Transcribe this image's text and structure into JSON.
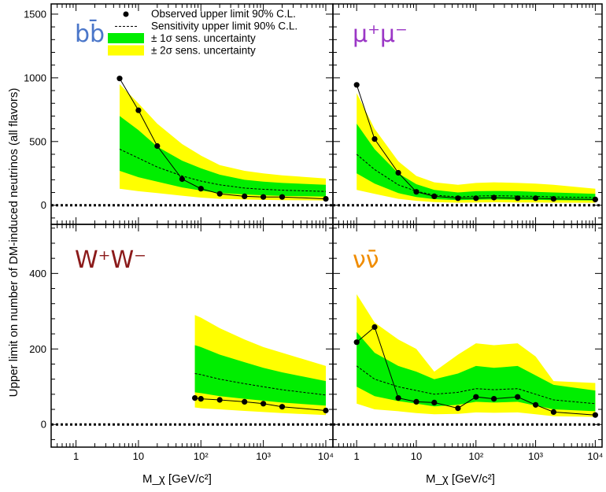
{
  "chart_data": {
    "type": "line",
    "layout": "2x2 panels, shared axes",
    "xlabel": "M_χ [GeV/c²]",
    "ylabel": "Upper limit on number of DM-induced neutrinos (all flavors)",
    "x_scale": "log",
    "xlim": [
      0.4,
      13000
    ],
    "x_ticks": [
      "1",
      "10",
      "10²",
      "10³",
      "10⁴"
    ],
    "legend": {
      "position": "top-right of top-left panel",
      "entries": [
        "Observed upper limit 90% C.L.",
        "Sensitivity upper limit 90% C.L.",
        "± 1σ sens. uncertainty",
        "± 2σ sens. uncertainty"
      ]
    },
    "colors": {
      "band_1sigma": "#00ee00",
      "band_2sigma": "#ffff00",
      "observed": "#000000"
    },
    "rows": [
      {
        "ylim": [
          -150,
          1580
        ],
        "y_ticks": [
          "0",
          "500",
          "1000",
          "1500"
        ]
      },
      {
        "ylim": [
          -60,
          530
        ],
        "y_ticks": [
          "0",
          "200",
          "400"
        ]
      }
    ],
    "panels": [
      {
        "channel": "bb̄",
        "color": "#4a76c9",
        "row": 0,
        "col": 0,
        "x": [
          5,
          10,
          20,
          50,
          100,
          200,
          500,
          1000,
          2000,
          10000
        ],
        "observed": [
          995,
          745,
          465,
          205,
          130,
          90,
          70,
          65,
          65,
          50
        ],
        "sensitivity": [
          440,
          370,
          300,
          230,
          190,
          160,
          135,
          125,
          118,
          108
        ],
        "band_1sigma": {
          "lo": [
            270,
            220,
            185,
            140,
            115,
            95,
            85,
            78,
            73,
            68
          ],
          "hi": [
            700,
            590,
            460,
            350,
            290,
            240,
            200,
            185,
            175,
            160
          ]
        },
        "band_2sigma": {
          "lo": [
            130,
            110,
            95,
            75,
            60,
            50,
            45,
            42,
            40,
            38
          ],
          "hi": [
            950,
            800,
            640,
            480,
            390,
            315,
            270,
            250,
            235,
            210
          ]
        }
      },
      {
        "channel": "μ⁺μ⁻",
        "color": "#9b37c6",
        "row": 0,
        "col": 1,
        "x": [
          1,
          2,
          5,
          10,
          20,
          50,
          100,
          200,
          500,
          1000,
          2000,
          10000
        ],
        "observed": [
          945,
          520,
          255,
          105,
          70,
          55,
          55,
          60,
          55,
          55,
          50,
          45
        ],
        "sensitivity": [
          400,
          280,
          160,
          110,
          80,
          65,
          72,
          75,
          72,
          70,
          65,
          60
        ],
        "band_1sigma": {
          "lo": [
            250,
            170,
            95,
            65,
            48,
            40,
            43,
            45,
            43,
            42,
            40,
            38
          ],
          "hi": [
            640,
            440,
            250,
            165,
            120,
            100,
            110,
            112,
            110,
            105,
            100,
            90
          ]
        },
        "band_2sigma": {
          "lo": [
            120,
            90,
            50,
            35,
            25,
            20,
            22,
            23,
            22,
            21,
            20,
            19
          ],
          "hi": [
            880,
            600,
            345,
            230,
            180,
            160,
            175,
            180,
            175,
            170,
            160,
            130
          ]
        }
      },
      {
        "channel": "W⁺W⁻",
        "color": "#8b1a1a",
        "row": 1,
        "col": 0,
        "x": [
          80,
          100,
          200,
          500,
          1000,
          2000,
          10000
        ],
        "observed": [
          70,
          68,
          65,
          60,
          55,
          47,
          37
        ],
        "sensitivity": [
          135,
          132,
          120,
          108,
          100,
          92,
          78
        ],
        "band_1sigma": {
          "lo": [
            85,
            83,
            75,
            68,
            63,
            58,
            50
          ],
          "hi": [
            210,
            205,
            185,
            165,
            150,
            138,
            115
          ]
        },
        "band_2sigma": {
          "lo": [
            45,
            43,
            40,
            36,
            33,
            30,
            25
          ],
          "hi": [
            290,
            283,
            255,
            225,
            205,
            190,
            155
          ]
        }
      },
      {
        "channel": "νν̄",
        "color": "#f08c00",
        "row": 1,
        "col": 1,
        "x": [
          1,
          2,
          5,
          10,
          20,
          50,
          100,
          200,
          500,
          1000,
          2000,
          10000
        ],
        "observed": [
          218,
          258,
          70,
          60,
          58,
          43,
          73,
          68,
          73,
          52,
          33,
          25
        ],
        "sensitivity": [
          155,
          120,
          100,
          90,
          80,
          85,
          95,
          92,
          95,
          80,
          65,
          55
        ],
        "band_1sigma": {
          "lo": [
            100,
            75,
            62,
            55,
            48,
            52,
            60,
            58,
            60,
            50,
            40,
            35
          ],
          "hi": [
            245,
            190,
            155,
            140,
            120,
            135,
            155,
            150,
            155,
            130,
            105,
            90
          ]
        },
        "band_2sigma": {
          "lo": [
            55,
            40,
            35,
            30,
            27,
            28,
            32,
            31,
            32,
            27,
            22,
            20
          ],
          "hi": [
            345,
            270,
            225,
            200,
            140,
            185,
            215,
            210,
            215,
            180,
            115,
            110
          ]
        }
      }
    ]
  }
}
